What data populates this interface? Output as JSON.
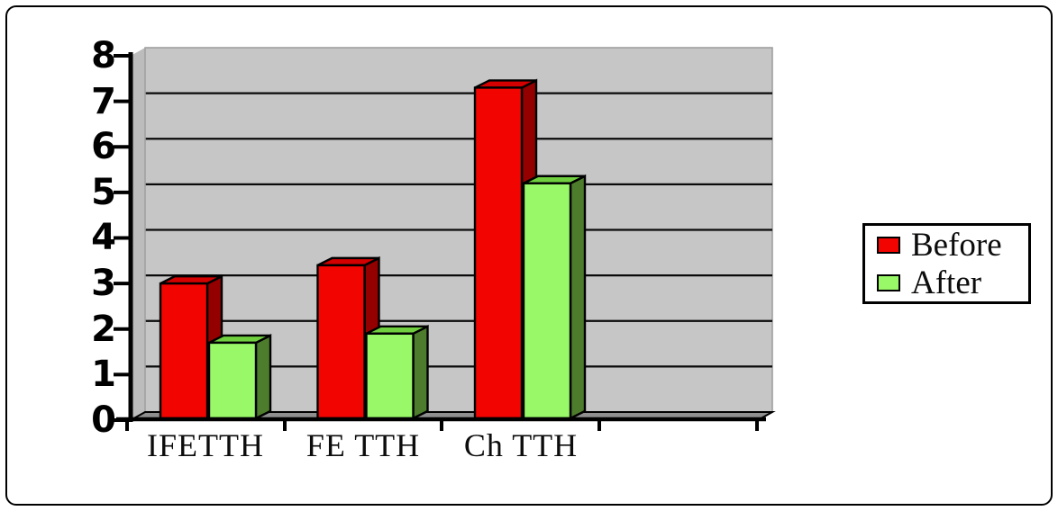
{
  "chart_data": {
    "type": "bar",
    "style": "3d-clustered",
    "title": "",
    "xlabel": "",
    "ylabel": "",
    "categories": [
      "IFETTH",
      "FE TTH",
      "Ch TTH"
    ],
    "series": [
      {
        "name": "Before",
        "color": "#f20400",
        "top_color": "#d40000",
        "side_color": "#940000",
        "values": [
          3.0,
          3.4,
          7.3
        ]
      },
      {
        "name": "After",
        "color": "#98f868",
        "top_color": "#6fcf3e",
        "side_color": "#4d7c2c",
        "values": [
          1.7,
          1.9,
          5.2
        ]
      }
    ],
    "ylim": [
      0,
      8
    ],
    "yticks": [
      "0",
      "1",
      "2",
      "3",
      "4",
      "5",
      "6",
      "7",
      "8"
    ],
    "grid": true,
    "legend_position": "right",
    "wall_color": "#c6c6c6",
    "wall_side_color": "#bcbcbc",
    "floor_color": "#8f8f8f",
    "gridline_color": "#0a0a0a",
    "axis_color": "#000000"
  }
}
